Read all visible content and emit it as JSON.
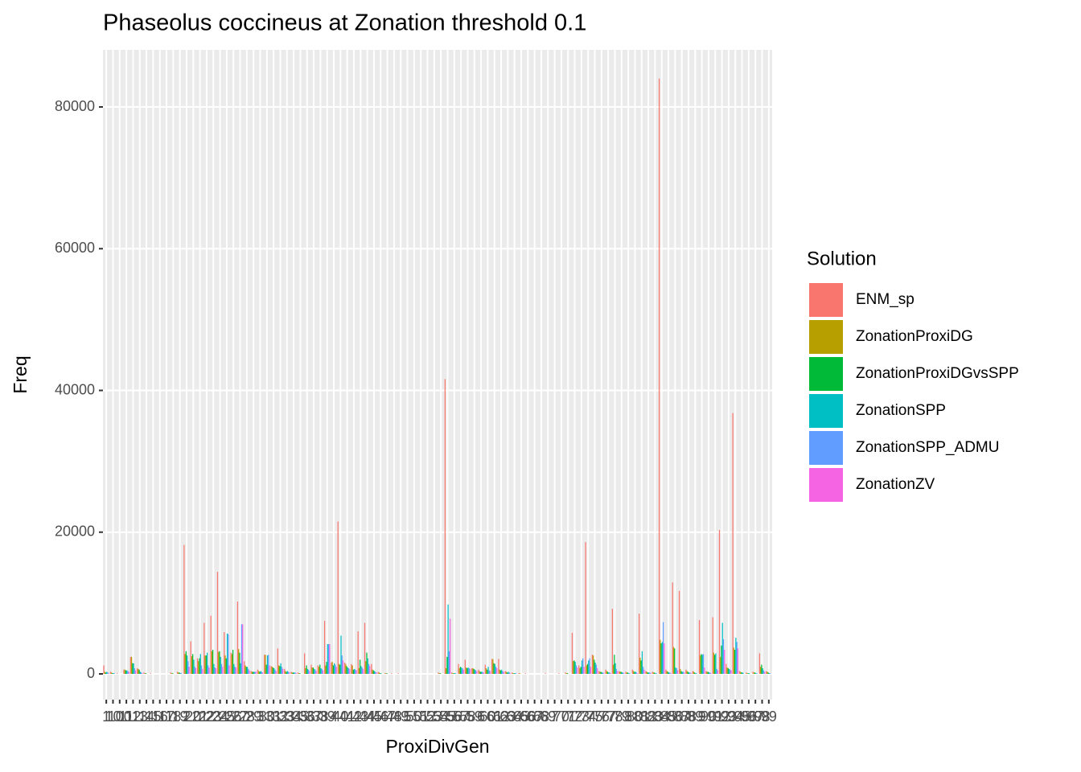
{
  "chart_data": {
    "type": "bar",
    "title": "Phaseolus coccineus at Zonation threshold 0.1",
    "x_label": "ProxiDivGen",
    "y_label": "Freq",
    "legend_title": "Solution",
    "categories": [
      "1",
      "10",
      "100",
      "11",
      "12",
      "13",
      "14",
      "15",
      "16",
      "17",
      "18",
      "19",
      "2",
      "20",
      "21",
      "22",
      "23",
      "24",
      "25",
      "26",
      "27",
      "28",
      "29",
      "3",
      "30",
      "31",
      "32",
      "33",
      "34",
      "35",
      "36",
      "37",
      "38",
      "39",
      "4",
      "40",
      "41",
      "42",
      "43",
      "44",
      "45",
      "46",
      "47",
      "48",
      "49",
      "5",
      "50",
      "51",
      "52",
      "53",
      "54",
      "55",
      "56",
      "57",
      "58",
      "59",
      "6",
      "60",
      "61",
      "62",
      "63",
      "64",
      "65",
      "66",
      "67",
      "68",
      "69",
      "7",
      "70",
      "71",
      "72",
      "73",
      "74",
      "75",
      "76",
      "77",
      "78",
      "79",
      "8",
      "80",
      "81",
      "82",
      "83",
      "84",
      "85",
      "86",
      "87",
      "88",
      "89",
      "9",
      "90",
      "91",
      "92",
      "93",
      "94",
      "95",
      "96",
      "97",
      "98",
      "99"
    ],
    "series": [
      {
        "name": "ENM_sp",
        "color": "#F8766D",
        "values": [
          1200,
          300,
          100,
          600,
          2400,
          800,
          200,
          100,
          0,
          0,
          200,
          300,
          18200,
          4600,
          2200,
          7200,
          8200,
          14400,
          5900,
          3000,
          10200,
          1800,
          400,
          600,
          2700,
          1100,
          3600,
          700,
          300,
          200,
          2900,
          1300,
          1200,
          7500,
          1600,
          21500,
          1600,
          1400,
          6000,
          7200,
          1400,
          300,
          100,
          100,
          100,
          0,
          0,
          0,
          0,
          0,
          200,
          41600,
          200,
          1400,
          2000,
          800,
          600,
          1300,
          2100,
          2100,
          400,
          200,
          100,
          100,
          0,
          0,
          100,
          0,
          100,
          200,
          5800,
          1200,
          18600,
          2700,
          400,
          600,
          9200,
          400,
          300,
          600,
          8500,
          400,
          300,
          84000,
          600,
          12900,
          11700,
          600,
          400,
          7600,
          400,
          8000,
          20300,
          1400,
          36800,
          400,
          200,
          300,
          2900,
          400
        ]
      },
      {
        "name": "ZonationProxiDG",
        "color": "#B79F00",
        "values": [
          300,
          200,
          0,
          600,
          2400,
          700,
          100,
          0,
          0,
          0,
          100,
          200,
          2800,
          2500,
          1800,
          2600,
          3200,
          3100,
          2600,
          2800,
          3500,
          1200,
          300,
          400,
          2700,
          1000,
          1200,
          400,
          200,
          100,
          800,
          900,
          1000,
          1200,
          1700,
          1400,
          1400,
          1200,
          800,
          1800,
          600,
          200,
          100,
          0,
          0,
          0,
          0,
          0,
          0,
          0,
          100,
          800,
          100,
          800,
          900,
          800,
          400,
          800,
          2100,
          600,
          300,
          100,
          100,
          0,
          0,
          0,
          0,
          0,
          0,
          100,
          1800,
          800,
          1200,
          2600,
          300,
          400,
          1300,
          300,
          200,
          400,
          2300,
          300,
          200,
          4800,
          400,
          3800,
          700,
          400,
          300,
          2600,
          300,
          3000,
          2400,
          900,
          3700,
          300,
          100,
          200,
          1000,
          300
        ]
      },
      {
        "name": "ZonationProxiDGvsSPP",
        "color": "#00BA38",
        "values": [
          200,
          100,
          0,
          500,
          1500,
          600,
          100,
          0,
          0,
          0,
          100,
          200,
          3200,
          2800,
          2200,
          2600,
          3400,
          3200,
          2200,
          3400,
          3000,
          1000,
          300,
          300,
          1300,
          900,
          1100,
          300,
          200,
          100,
          1200,
          900,
          1300,
          1700,
          1200,
          1300,
          1100,
          600,
          2000,
          3000,
          500,
          100,
          100,
          0,
          0,
          0,
          0,
          0,
          0,
          0,
          100,
          2400,
          100,
          1000,
          800,
          700,
          300,
          600,
          1500,
          500,
          200,
          100,
          0,
          0,
          0,
          0,
          0,
          0,
          0,
          100,
          1900,
          1000,
          1400,
          2000,
          300,
          300,
          2700,
          300,
          200,
          300,
          1900,
          200,
          200,
          4300,
          300,
          3600,
          400,
          300,
          200,
          2800,
          300,
          2700,
          4000,
          800,
          3400,
          200,
          100,
          200,
          1300,
          200
        ]
      },
      {
        "name": "ZonationSPP",
        "color": "#00BFC4",
        "values": [
          300,
          100,
          0,
          500,
          1500,
          300,
          0,
          0,
          0,
          0,
          0,
          100,
          2600,
          2000,
          2800,
          3000,
          1400,
          2400,
          5700,
          1400,
          1500,
          1000,
          300,
          400,
          2600,
          800,
          1500,
          400,
          200,
          0,
          700,
          700,
          800,
          4200,
          1500,
          5400,
          900,
          700,
          1100,
          2200,
          400,
          100,
          0,
          0,
          0,
          0,
          0,
          0,
          0,
          0,
          0,
          9800,
          100,
          900,
          900,
          600,
          300,
          1000,
          1400,
          600,
          300,
          100,
          0,
          0,
          0,
          0,
          0,
          0,
          0,
          0,
          1700,
          1900,
          1900,
          1600,
          200,
          200,
          1500,
          200,
          100,
          300,
          3200,
          200,
          100,
          4500,
          200,
          900,
          300,
          200,
          100,
          2700,
          200,
          2900,
          7200,
          700,
          5100,
          200,
          100,
          100,
          800,
          100
        ]
      },
      {
        "name": "ZonationSPP_ADMU",
        "color": "#619CFF",
        "values": [
          200,
          100,
          0,
          400,
          800,
          200,
          0,
          0,
          0,
          0,
          0,
          100,
          1800,
          1000,
          1200,
          1200,
          900,
          1400,
          5600,
          1000,
          7000,
          700,
          300,
          300,
          2700,
          600,
          1000,
          300,
          200,
          0,
          600,
          600,
          700,
          4200,
          1300,
          2600,
          800,
          600,
          900,
          1400,
          300,
          0,
          0,
          0,
          0,
          0,
          0,
          0,
          0,
          0,
          0,
          3200,
          100,
          800,
          800,
          500,
          300,
          500,
          1000,
          400,
          200,
          100,
          0,
          0,
          0,
          0,
          0,
          0,
          0,
          0,
          1200,
          2200,
          2200,
          1300,
          200,
          200,
          700,
          200,
          100,
          200,
          1000,
          200,
          100,
          7300,
          200,
          800,
          300,
          200,
          100,
          2800,
          200,
          700,
          4900,
          600,
          4500,
          100,
          0,
          100,
          500,
          100
        ]
      },
      {
        "name": "ZonationZV",
        "color": "#F564E3",
        "values": [
          100,
          0,
          0,
          300,
          500,
          100,
          0,
          0,
          0,
          0,
          0,
          0,
          1000,
          800,
          700,
          900,
          800,
          1000,
          1200,
          900,
          7000,
          500,
          300,
          200,
          1200,
          400,
          700,
          200,
          100,
          0,
          400,
          400,
          500,
          4200,
          1000,
          1900,
          700,
          500,
          700,
          1100,
          200,
          0,
          0,
          0,
          0,
          0,
          0,
          0,
          0,
          0,
          0,
          7800,
          0,
          600,
          700,
          400,
          200,
          400,
          800,
          300,
          100,
          0,
          0,
          0,
          0,
          0,
          0,
          0,
          0,
          0,
          900,
          1000,
          1000,
          800,
          100,
          100,
          400,
          100,
          0,
          100,
          600,
          100,
          0,
          4300,
          100,
          500,
          200,
          100,
          0,
          900,
          100,
          500,
          3400,
          500,
          3600,
          0,
          0,
          0,
          300,
          0
        ]
      }
    ],
    "ylim": [
      -3631,
      88057
    ],
    "yticks": [
      0,
      20000,
      40000,
      60000,
      80000
    ],
    "grid": true
  }
}
